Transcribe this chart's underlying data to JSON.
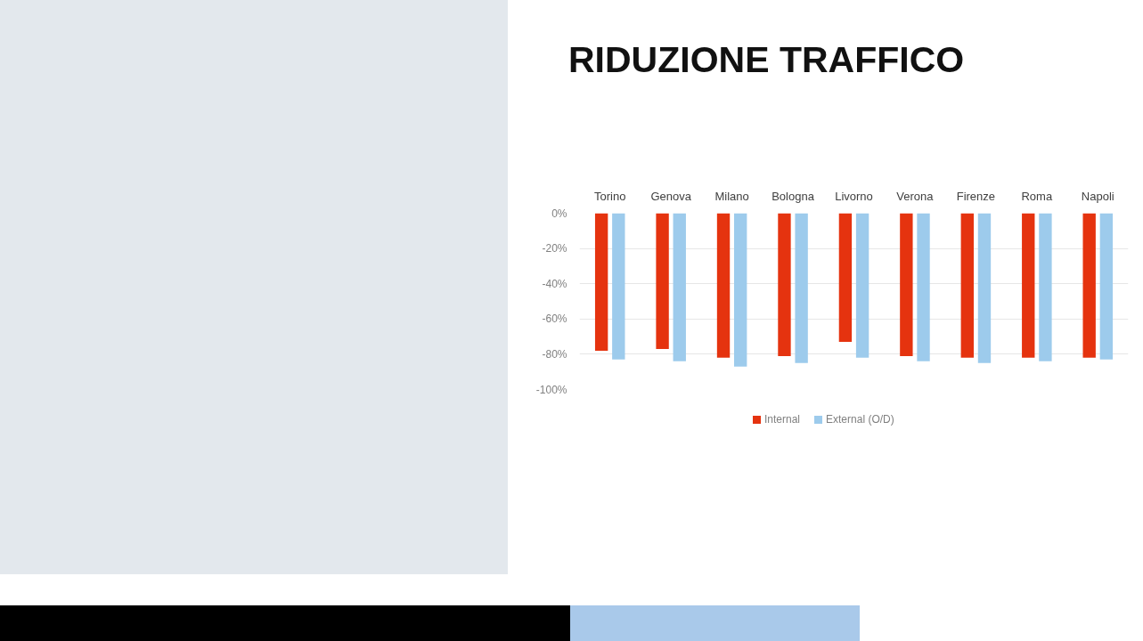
{
  "chart_data": {
    "type": "bar",
    "title": "RIDUZIONE TRAFFICO",
    "categories": [
      "Torino",
      "Genova",
      "Milano",
      "Bologna",
      "Livorno",
      "Verona",
      "Firenze",
      "Roma",
      "Napoli"
    ],
    "series": [
      {
        "name": "Internal",
        "color": "#e5330f",
        "values": [
          -78,
          -77,
          -82,
          -81,
          -73,
          -81,
          -82,
          -82,
          -82
        ]
      },
      {
        "name": "External (O/D)",
        "color": "#9dcbec",
        "values": [
          -83,
          -84,
          -87,
          -85,
          -82,
          -84,
          -85,
          -84,
          -83
        ]
      }
    ],
    "ylim": [
      -100,
      0
    ],
    "yticks": [
      {
        "value": 0,
        "label": "0%"
      },
      {
        "value": -20,
        "label": "-20%"
      },
      {
        "value": -40,
        "label": "-40%"
      },
      {
        "value": -60,
        "label": "-60%"
      },
      {
        "value": -80,
        "label": "-80%"
      },
      {
        "value": -100,
        "label": "-100%"
      }
    ],
    "grid": "y",
    "legend": "bottom"
  }
}
